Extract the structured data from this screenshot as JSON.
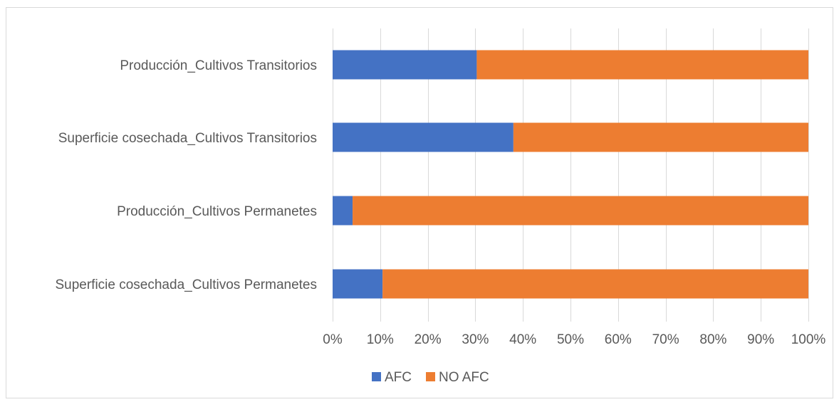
{
  "chart_data": {
    "type": "bar",
    "orientation": "horizontal",
    "stacked": "percent",
    "categories": [
      "Producción_Cultivos Transitorios",
      "Superficie cosechada_Cultivos Transitorios",
      "Producción_Cultivos Permanetes",
      "Superficie cosechada_Cultivos Permanetes"
    ],
    "series": [
      {
        "name": "AFC",
        "color": "#4472C4",
        "values": [
          30.3,
          38.0,
          4.2,
          10.5
        ]
      },
      {
        "name": "NO AFC",
        "color": "#ED7D31",
        "values": [
          69.7,
          62.0,
          95.8,
          89.5
        ]
      }
    ],
    "xlim": [
      0,
      100
    ],
    "x_ticks": [
      0,
      10,
      20,
      30,
      40,
      50,
      60,
      70,
      80,
      90,
      100
    ],
    "x_tick_labels": [
      "0%",
      "10%",
      "20%",
      "30%",
      "40%",
      "50%",
      "60%",
      "70%",
      "80%",
      "90%",
      "100%"
    ],
    "grid": "vertical",
    "gridline_color": "#d9d9d9",
    "legend_position": "bottom",
    "title": "",
    "xlabel": "",
    "ylabel": ""
  }
}
